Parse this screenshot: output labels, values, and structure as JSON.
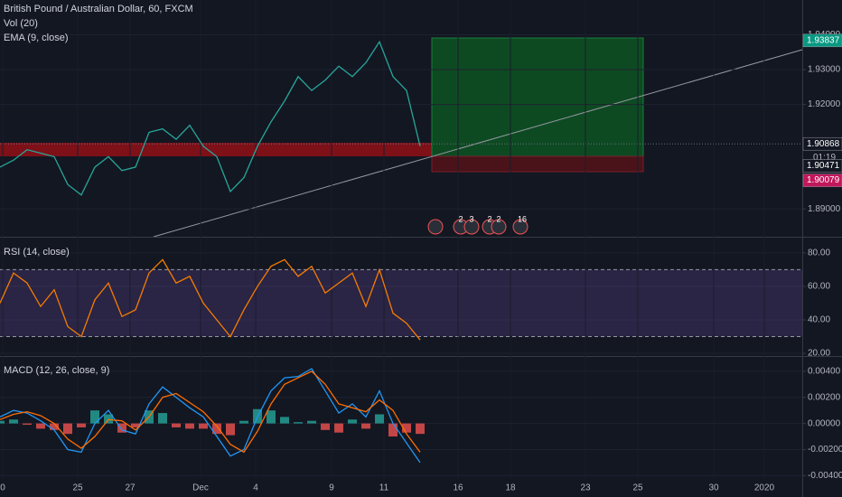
{
  "chart_data": [
    {
      "type": "line",
      "title": "British Pound / Australian Dollar, 60, FXCM",
      "indicators": [
        "Vol (20)",
        "EMA (9, close)"
      ],
      "x": [
        0,
        15,
        30,
        45,
        60,
        75,
        90,
        105,
        120,
        135,
        150,
        165,
        180,
        195,
        210,
        225,
        240,
        255,
        270,
        285,
        300,
        315,
        330,
        345,
        360,
        375,
        390,
        405,
        420,
        435,
        450,
        465
      ],
      "series": [
        {
          "color": "#26a69a",
          "values": [
            1.902,
            1.904,
            1.907,
            1.906,
            1.905,
            1.897,
            1.894,
            1.902,
            1.905,
            1.901,
            1.902,
            1.912,
            1.913,
            1.91,
            1.914,
            1.908,
            1.905,
            1.895,
            1.899,
            1.908,
            1.915,
            1.921,
            1.928,
            1.924,
            1.927,
            1.931,
            1.928,
            1.932,
            1.938,
            1.928,
            1.924,
            1.908
          ]
        }
      ],
      "ylim": [
        1.882,
        1.95
      ],
      "yticks": [
        {
          "value": 1.89,
          "label": "1.89000"
        },
        {
          "value": 1.92,
          "label": "1.92000"
        },
        {
          "value": 1.93,
          "label": "1.93000"
        },
        {
          "value": 1.94,
          "label": "1.94000"
        }
      ],
      "price_tags": [
        {
          "value": 1.93837,
          "color": "#089981"
        },
        {
          "value": 1.90868,
          "color": "#131722"
        },
        {
          "value": 1.90471,
          "color": "#131722"
        },
        {
          "value": 1.90079,
          "color": "#c2185b"
        }
      ],
      "countdown": "01:19",
      "events": [
        "2",
        "3",
        "2",
        "2",
        "16"
      ]
    },
    {
      "type": "line",
      "title": "RSI (14, close)",
      "x": [
        0,
        15,
        30,
        45,
        60,
        75,
        90,
        105,
        120,
        135,
        150,
        165,
        180,
        195,
        210,
        225,
        240,
        255,
        270,
        285,
        300,
        315,
        330,
        345,
        360,
        375,
        390,
        405,
        420,
        435,
        450,
        465
      ],
      "series": [
        {
          "color": "#f57c00",
          "values": [
            50,
            68,
            62,
            48,
            58,
            36,
            30,
            52,
            62,
            42,
            46,
            68,
            76,
            62,
            66,
            50,
            40,
            30,
            46,
            60,
            72,
            76,
            66,
            72,
            56,
            62,
            68,
            48,
            70,
            44,
            38,
            28
          ]
        }
      ],
      "bands": [
        70,
        30
      ],
      "ylim": [
        18.4,
        89.1
      ],
      "yticks": [
        {
          "value": 20,
          "label": "20.00"
        },
        {
          "value": 40,
          "label": "40.00"
        },
        {
          "value": 60,
          "label": "60.00"
        },
        {
          "value": 80,
          "label": "80.00"
        }
      ]
    },
    {
      "type": "line",
      "title": "MACD (12, 26, close, 9)",
      "x": [
        0,
        15,
        30,
        45,
        60,
        75,
        90,
        105,
        120,
        135,
        150,
        165,
        180,
        195,
        210,
        225,
        240,
        255,
        270,
        285,
        300,
        315,
        330,
        345,
        360,
        375,
        390,
        405,
        420,
        435,
        450,
        465
      ],
      "series": [
        {
          "color": "#2196f3",
          "values": [
            0.0005,
            0.001,
            0.0008,
            0.0002,
            -0.0005,
            -0.002,
            -0.0022,
            0,
            0.001,
            -0.0005,
            -0.0008,
            0.0015,
            0.0028,
            0.002,
            0.0012,
            0.0005,
            -0.001,
            -0.0025,
            -0.002,
            0.0005,
            0.0025,
            0.0035,
            0.0036,
            0.0042,
            0.0025,
            0.0008,
            0.0015,
            0.0005,
            0.0025,
            0,
            -0.0015,
            -0.003
          ]
        },
        {
          "color": "#ff6d00",
          "values": [
            0.0003,
            0.0007,
            0.0009,
            0.0006,
            0,
            -0.0012,
            -0.0019,
            -0.001,
            0.0003,
            0.0002,
            -0.0005,
            0.0005,
            0.002,
            0.0023,
            0.0016,
            0.0009,
            -0.0002,
            -0.0016,
            -0.0022,
            -0.0006,
            0.0015,
            0.003,
            0.0035,
            0.004,
            0.003,
            0.0015,
            0.0012,
            0.0009,
            0.0018,
            0.001,
            -0.0008,
            -0.0022
          ]
        }
      ],
      "histogram": {
        "up_color": "#26a69a",
        "down_color": "#ef5350",
        "values": [
          0.0002,
          0.0003,
          -0.0001,
          -0.0004,
          -0.0005,
          -0.0008,
          -0.0003,
          0.001,
          0.0007,
          -0.0007,
          -0.0003,
          0.001,
          0.0008,
          -0.0003,
          -0.0004,
          -0.0004,
          -0.0008,
          -0.0009,
          0.0002,
          0.0011,
          0.001,
          0.0005,
          0.0001,
          0.0002,
          -0.0005,
          -0.0007,
          0.0003,
          -0.0004,
          0.0007,
          -0.001,
          -0.0007,
          -0.0008
        ]
      },
      "ylim": [
        -0.0055,
        0.0051
      ],
      "yticks": [
        {
          "value": -0.004,
          "label": "-0.00400"
        },
        {
          "value": -0.002,
          "label": "-0.00200"
        },
        {
          "value": 0,
          "label": "0.00000"
        },
        {
          "value": 0.002,
          "label": "0.00200"
        },
        {
          "value": 0.004,
          "label": "0.00400"
        }
      ],
      "xlim": [
        0,
        888
      ],
      "xticks": [
        {
          "value": 3,
          "label": "0"
        },
        {
          "value": 86,
          "label": "25"
        },
        {
          "value": 144,
          "label": "27"
        },
        {
          "value": 222,
          "label": "Dec"
        },
        {
          "value": 283,
          "label": "4"
        },
        {
          "value": 367,
          "label": "9"
        },
        {
          "value": 425,
          "label": "11"
        },
        {
          "value": 507,
          "label": "16"
        },
        {
          "value": 565,
          "label": "18"
        },
        {
          "value": 648,
          "label": "23"
        },
        {
          "value": 706,
          "label": "25"
        },
        {
          "value": 790,
          "label": "30"
        },
        {
          "value": 846,
          "label": "2020"
        }
      ]
    }
  ]
}
